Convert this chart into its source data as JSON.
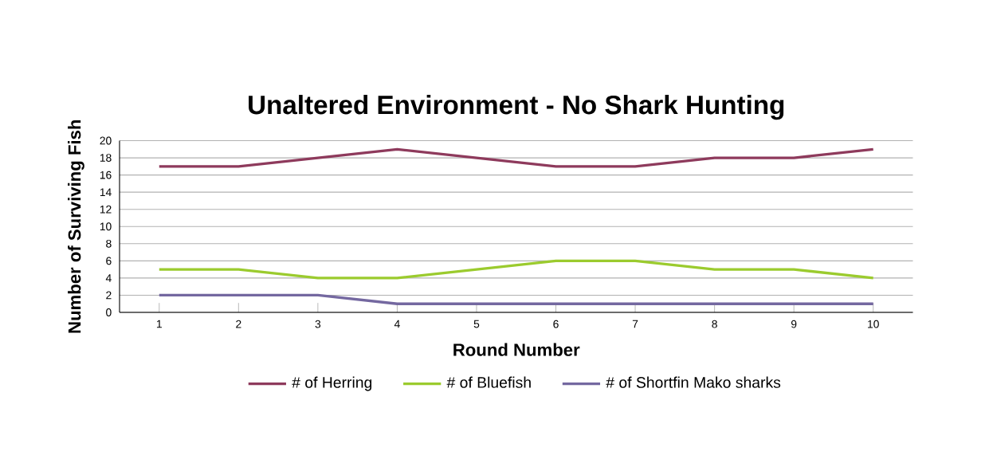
{
  "chart_data": {
    "type": "line",
    "title": "Unaltered Environment - No Shark Hunting",
    "xlabel": "Round Number",
    "ylabel": "Number of Surviving Fish",
    "categories": [
      "1",
      "2",
      "3",
      "4",
      "5",
      "6",
      "7",
      "8",
      "9",
      "10"
    ],
    "series": [
      {
        "name": "# of Herring",
        "color": "#8e3a5c",
        "values": [
          17,
          17,
          18,
          19,
          18,
          17,
          17,
          18,
          18,
          19
        ]
      },
      {
        "name": "# of Bluefish",
        "color": "#9bcb2e",
        "values": [
          5,
          5,
          4,
          4,
          5,
          6,
          6,
          5,
          5,
          4
        ]
      },
      {
        "name": "# of Shortfin Mako sharks",
        "color": "#7468a0",
        "values": [
          2,
          2,
          2,
          1,
          1,
          1,
          1,
          1,
          1,
          1
        ]
      }
    ],
    "ylim": [
      0,
      20
    ],
    "yticks": [
      0,
      2,
      4,
      6,
      8,
      10,
      12,
      14,
      16,
      18,
      20
    ],
    "grid": "y",
    "legend": "bottom",
    "marker": "none",
    "line_style": "solid"
  }
}
